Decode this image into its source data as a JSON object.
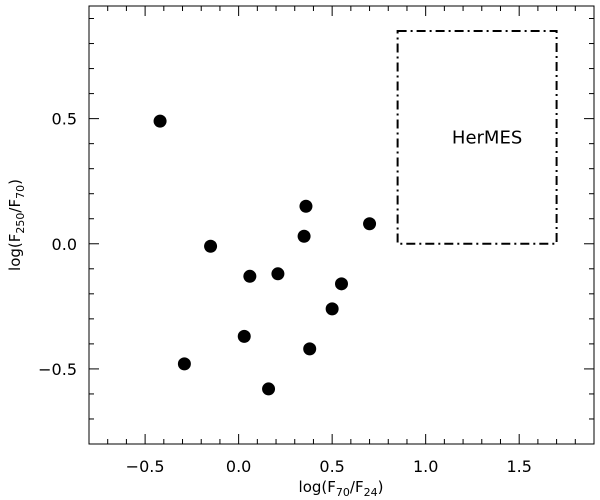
{
  "chart_data": {
    "type": "scatter",
    "xlim": [
      -0.8,
      1.9
    ],
    "ylim": [
      -0.8,
      0.95
    ],
    "xticks": [
      -0.5,
      0.0,
      0.5,
      1.0,
      1.5
    ],
    "yticks": [
      -0.5,
      0.0,
      0.5
    ],
    "xtick_labels": [
      "−0.5",
      "0.0",
      "0.5",
      "1.0",
      "1.5"
    ],
    "ytick_labels": [
      "−0.5",
      "0.0",
      "0.5"
    ],
    "xlabel": {
      "pre": "log(F",
      "sub1": "70",
      "mid": "/F",
      "sub2": "24",
      "post": ")"
    },
    "ylabel": {
      "pre": "log(F",
      "sub1": "250",
      "mid": "/F",
      "sub2": "70",
      "post": ")"
    },
    "grid": false,
    "legend": "none",
    "points": [
      {
        "x": -0.42,
        "y": 0.49
      },
      {
        "x": -0.15,
        "y": -0.01
      },
      {
        "x": -0.29,
        "y": -0.48
      },
      {
        "x": 0.03,
        "y": -0.37
      },
      {
        "x": 0.06,
        "y": -0.13
      },
      {
        "x": 0.21,
        "y": -0.12
      },
      {
        "x": 0.16,
        "y": -0.58
      },
      {
        "x": 0.36,
        "y": 0.15
      },
      {
        "x": 0.35,
        "y": 0.03
      },
      {
        "x": 0.38,
        "y": -0.42
      },
      {
        "x": 0.5,
        "y": -0.26
      },
      {
        "x": 0.55,
        "y": -0.16
      },
      {
        "x": 0.7,
        "y": 0.08
      }
    ],
    "region": {
      "label": "HerMES",
      "x0": 0.85,
      "x1": 1.7,
      "y0": 0.0,
      "y1": 0.85,
      "line_style": "dash-dot"
    },
    "marker_color": "#000000"
  }
}
